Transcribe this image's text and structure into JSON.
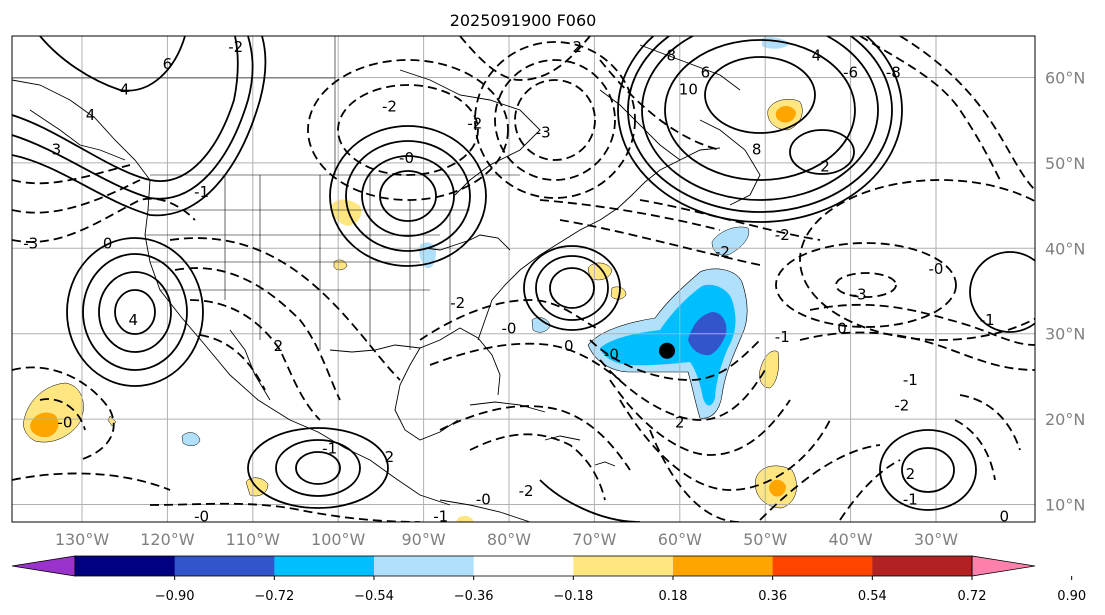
{
  "title": "2025091900 F060",
  "map": {
    "lon_labels": [
      "130°W",
      "120°W",
      "110°W",
      "100°W",
      "90°W",
      "80°W",
      "70°W",
      "60°W",
      "50°W",
      "40°W",
      "30°W"
    ],
    "lat_labels": [
      "60°N",
      "50°N",
      "40°N",
      "30°N",
      "20°N",
      "10°N"
    ],
    "contour_labels": [
      {
        "text": "-2",
        "lon": -112,
        "lat": 63
      },
      {
        "text": "6",
        "lon": -120,
        "lat": 61
      },
      {
        "text": "4",
        "lon": -125,
        "lat": 58
      },
      {
        "text": "4",
        "lon": -129,
        "lat": 55
      },
      {
        "text": "3",
        "lon": -133,
        "lat": 51
      },
      {
        "text": "-1",
        "lon": -116,
        "lat": 46
      },
      {
        "text": "-3",
        "lon": -136,
        "lat": 40
      },
      {
        "text": "0",
        "lon": -127,
        "lat": 40
      },
      {
        "text": "4",
        "lon": -124,
        "lat": 31
      },
      {
        "text": "2",
        "lon": -107,
        "lat": 28
      },
      {
        "text": "-2",
        "lon": -94,
        "lat": 56
      },
      {
        "text": "-0",
        "lon": -92,
        "lat": 50
      },
      {
        "text": "-2",
        "lon": -84,
        "lat": 54
      },
      {
        "text": "-3",
        "lon": -76,
        "lat": 53
      },
      {
        "text": "2",
        "lon": -72,
        "lat": 63
      },
      {
        "text": "8",
        "lon": -61,
        "lat": 62
      },
      {
        "text": "10",
        "lon": -59,
        "lat": 58
      },
      {
        "text": "6",
        "lon": -57,
        "lat": 60
      },
      {
        "text": "8",
        "lon": -51,
        "lat": 51
      },
      {
        "text": "4",
        "lon": -44,
        "lat": 62
      },
      {
        "text": "-6",
        "lon": -40,
        "lat": 60
      },
      {
        "text": "-8",
        "lon": -35,
        "lat": 60
      },
      {
        "text": "2",
        "lon": -43,
        "lat": 49
      },
      {
        "text": "-2",
        "lon": -48,
        "lat": 41
      },
      {
        "text": "-2",
        "lon": -55,
        "lat": 39
      },
      {
        "text": "-3",
        "lon": -39,
        "lat": 34
      },
      {
        "text": "-0",
        "lon": -30,
        "lat": 37
      },
      {
        "text": "-1",
        "lon": -24,
        "lat": 31
      },
      {
        "text": "0",
        "lon": -41,
        "lat": 30
      },
      {
        "text": "-1",
        "lon": -48,
        "lat": 29
      },
      {
        "text": "-1",
        "lon": -33,
        "lat": 24
      },
      {
        "text": "-2",
        "lon": -34,
        "lat": 21
      },
      {
        "text": "-0",
        "lon": -80,
        "lat": 30
      },
      {
        "text": "-2",
        "lon": -86,
        "lat": 33
      },
      {
        "text": "0",
        "lon": -73,
        "lat": 28
      },
      {
        "text": "-0",
        "lon": -68,
        "lat": 27
      },
      {
        "text": "2",
        "lon": -60,
        "lat": 19
      },
      {
        "text": "-1",
        "lon": -101,
        "lat": 16
      },
      {
        "text": "2",
        "lon": -94,
        "lat": 15
      },
      {
        "text": "-0",
        "lon": -132,
        "lat": 19
      },
      {
        "text": "-0",
        "lon": -116,
        "lat": 8
      },
      {
        "text": "-1",
        "lon": -88,
        "lat": 8
      },
      {
        "text": "-0",
        "lon": -83,
        "lat": 10
      },
      {
        "text": "-2",
        "lon": -78,
        "lat": 11
      },
      {
        "text": "2",
        "lon": -33,
        "lat": 13
      },
      {
        "text": "-1",
        "lon": -33,
        "lat": 10
      },
      {
        "text": "0",
        "lon": -22,
        "lat": 8
      }
    ],
    "storm_marker": {
      "lon": -61.5,
      "lat": 28
    }
  },
  "colorbar": {
    "ticks": [
      "−0.90",
      "−0.72",
      "−0.54",
      "−0.36",
      "−0.18",
      "0.18",
      "0.36",
      "0.54",
      "0.72",
      "0.90"
    ],
    "colors": [
      "#9933cc",
      "#000080",
      "#3355cc",
      "#00bfff",
      "#b0e0fb",
      "#ffffff",
      "#ffe680",
      "#ffa500",
      "#ff4500",
      "#b22222",
      "#ff80aa"
    ]
  }
}
